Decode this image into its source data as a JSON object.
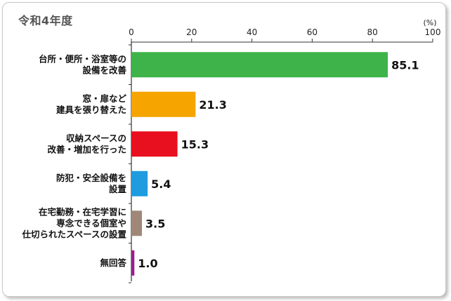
{
  "chart_data": {
    "type": "bar",
    "orientation": "horizontal",
    "title": "令和4年度",
    "unit": "(%)",
    "xlim": [
      0,
      100
    ],
    "ticks": [
      0,
      20,
      40,
      60,
      80,
      100
    ],
    "grid": false,
    "categories": [
      [
        "台所・便所・浴室等の",
        "設備を改善"
      ],
      [
        "窓・扉など",
        "建具を張り替えた"
      ],
      [
        "収納スペースの",
        "改善・増加を行った"
      ],
      [
        "防犯・安全設備を",
        "設置"
      ],
      [
        "在宅勤務・在宅学習に",
        "専念できる個室や",
        "仕切られたスペースの設置"
      ],
      [
        "無回答"
      ]
    ],
    "values": [
      85.1,
      21.3,
      15.3,
      5.4,
      3.5,
      1.0
    ],
    "value_labels": [
      "85.1",
      "21.3",
      "15.3",
      "5.4",
      "3.5",
      "1.0"
    ],
    "colors": [
      "#3db34a",
      "#f5a400",
      "#e8101e",
      "#1f9be0",
      "#a08878",
      "#9b1f8f"
    ]
  }
}
